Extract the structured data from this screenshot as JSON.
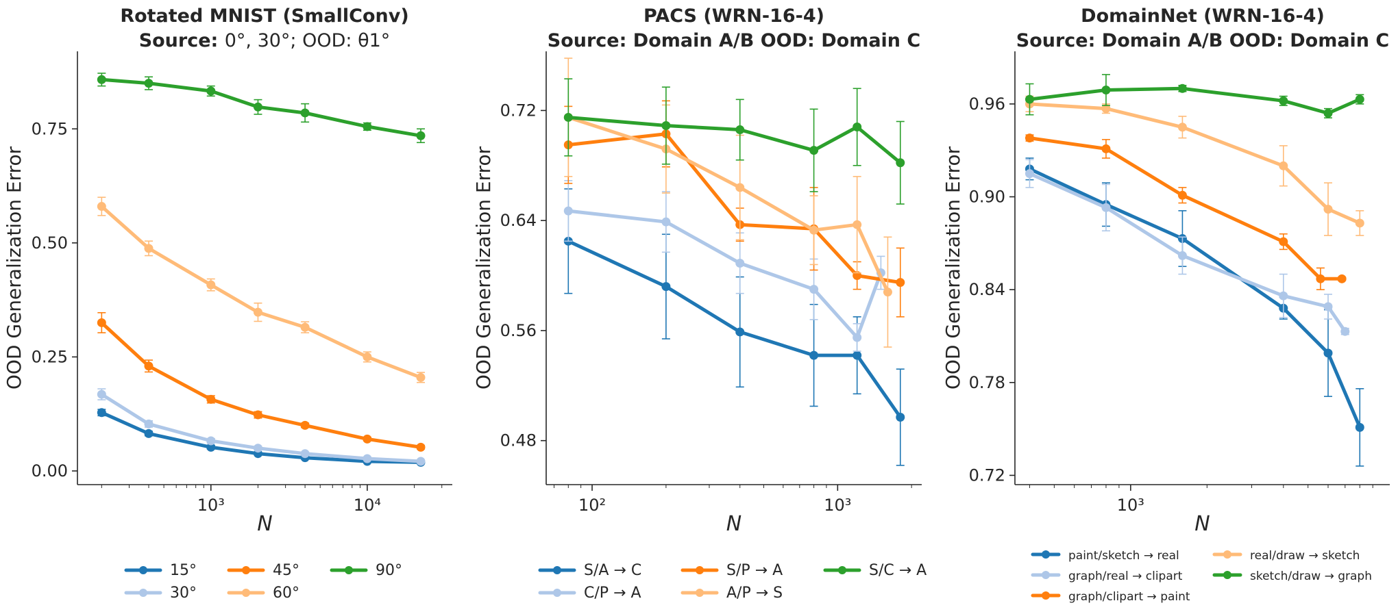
{
  "chart_data": [
    {
      "type": "line",
      "title": "Rotated MNIST (SmallConv)",
      "subtitle": "Source: 0°, 30°; OOD: θ1°",
      "subtitle_prefix": "Source: ",
      "subtitle_math": "0°, 30°; OOD: θ1°",
      "xlabel": "N",
      "ylabel": "OOD Generalization Error",
      "xscale": "log",
      "xlim": [
        140,
        35000
      ],
      "ylim": [
        -0.03,
        0.92
      ],
      "yticks": [
        0.0,
        0.25,
        0.5,
        0.75
      ],
      "ytick_labels": [
        "0.00",
        "0.25",
        "0.50",
        "0.75"
      ],
      "xticks": [
        1000,
        10000
      ],
      "xtick_labels": [
        "10³",
        "10⁴"
      ],
      "legend_cols": 3,
      "legend_position": "bottom-center",
      "x": [
        200,
        400,
        1000,
        2000,
        4000,
        10000,
        22000
      ],
      "series": [
        {
          "name": "15°",
          "color": "#1f77b4",
          "values": [
            0.128,
            0.082,
            0.052,
            0.038,
            0.029,
            0.021,
            0.019
          ],
          "err": [
            0.007,
            0.005,
            0.004,
            0.003,
            0.003,
            0.002,
            0.002
          ]
        },
        {
          "name": "30°",
          "color": "#aec7e8",
          "values": [
            0.168,
            0.103,
            0.066,
            0.05,
            0.038,
            0.027,
            0.021
          ],
          "err": [
            0.012,
            0.007,
            0.005,
            0.004,
            0.003,
            0.003,
            0.002
          ]
        },
        {
          "name": "45°",
          "color": "#ff7f0e",
          "values": [
            0.325,
            0.23,
            0.157,
            0.123,
            0.1,
            0.07,
            0.052
          ],
          "err": [
            0.022,
            0.013,
            0.008,
            0.007,
            0.005,
            0.004,
            0.004
          ]
        },
        {
          "name": "60°",
          "color": "#ffbb78",
          "values": [
            0.58,
            0.488,
            0.408,
            0.348,
            0.315,
            0.25,
            0.205
          ],
          "err": [
            0.02,
            0.016,
            0.013,
            0.02,
            0.012,
            0.011,
            0.011
          ]
        },
        {
          "name": "90°",
          "color": "#2ca02c",
          "values": [
            0.858,
            0.85,
            0.833,
            0.798,
            0.785,
            0.755,
            0.735
          ],
          "err": [
            0.014,
            0.014,
            0.011,
            0.016,
            0.02,
            0.008,
            0.015
          ]
        }
      ]
    },
    {
      "type": "line",
      "title": "PACS (WRN-16-4)",
      "subtitle": "Source: Domain A/B OOD: Domain C",
      "xlabel": "N",
      "ylabel": "OOD Generalization Error",
      "xscale": "log",
      "xlim": [
        65,
        2200
      ],
      "ylim": [
        0.448,
        0.763
      ],
      "yticks": [
        0.48,
        0.56,
        0.64,
        0.72
      ],
      "ytick_labels": [
        "0.48",
        "0.56",
        "0.64",
        "0.72"
      ],
      "xticks": [
        100,
        1000
      ],
      "xtick_labels": [
        "10²",
        "10³"
      ],
      "legend_cols": 3,
      "legend_position": "bottom-center",
      "x": [
        80,
        200,
        400,
        800,
        1200,
        1800
      ],
      "series": [
        {
          "name": "S/A → C",
          "color": "#1f77b4",
          "x": [
            80,
            200,
            400,
            800,
            1200,
            1800
          ],
          "values": [
            0.625,
            0.592,
            0.559,
            0.542,
            0.542,
            0.497
          ],
          "err": [
            0.038,
            0.038,
            0.04,
            0.037,
            0.028,
            0.035
          ]
        },
        {
          "name": "C/P → A",
          "color": "#aec7e8",
          "x": [
            80,
            200,
            400,
            800,
            1200,
            1500
          ],
          "values": [
            0.647,
            0.639,
            0.609,
            0.59,
            0.555,
            0.602
          ],
          "err": [
            0.022,
            0.022,
            0.022,
            0.022,
            0.01,
            0.012
          ]
        },
        {
          "name": "S/P → A",
          "color": "#ff7f0e",
          "x": [
            80,
            200,
            400,
            800,
            1200,
            1800
          ],
          "values": [
            0.695,
            0.703,
            0.637,
            0.634,
            0.6,
            0.595
          ],
          "err": [
            0.028,
            0.024,
            0.012,
            0.03,
            0.01,
            0.025
          ]
        },
        {
          "name": "A/P → S",
          "color": "#ffbb78",
          "x": [
            80,
            200,
            400,
            800,
            1200,
            1600
          ],
          "values": [
            0.715,
            0.692,
            0.664,
            0.633,
            0.637,
            0.588
          ],
          "err": [
            0.043,
            0.032,
            0.038,
            0.025,
            0.035,
            0.04
          ]
        },
        {
          "name": "S/C → A",
          "color": "#2ca02c",
          "x": [
            80,
            200,
            400,
            800,
            1200,
            1800
          ],
          "values": [
            0.715,
            0.709,
            0.706,
            0.691,
            0.708,
            0.682
          ],
          "err": [
            0.028,
            0.028,
            0.022,
            0.03,
            0.028,
            0.03
          ]
        }
      ]
    },
    {
      "type": "line",
      "title": "DomainNet (WRN-16-4)",
      "subtitle": "Source: Domain A/B OOD: Domain C",
      "xlabel": "N",
      "ylabel": "OOD Generalization Error",
      "xscale": "log",
      "xlim": [
        350,
        10500
      ],
      "ylim": [
        0.714,
        0.994
      ],
      "yticks": [
        0.72,
        0.78,
        0.84,
        0.9,
        0.96
      ],
      "ytick_labels": [
        "0.72",
        "0.78",
        "0.84",
        "0.90",
        "0.96"
      ],
      "xticks": [
        1000
      ],
      "xtick_labels": [
        "10³"
      ],
      "legend_cols": 2,
      "legend_position": "bottom-center",
      "series": [
        {
          "name": "paint/sketch → real",
          "color": "#1f77b4",
          "x": [
            400,
            800,
            1600,
            4000,
            6000,
            8000
          ],
          "values": [
            0.918,
            0.895,
            0.873,
            0.828,
            0.799,
            0.751
          ],
          "err": [
            0.007,
            0.014,
            0.018,
            0.007,
            0.028,
            0.025
          ]
        },
        {
          "name": "graph/real → clipart",
          "color": "#aec7e8",
          "x": [
            400,
            800,
            1600,
            4000,
            6000,
            7000
          ],
          "values": [
            0.915,
            0.893,
            0.862,
            0.836,
            0.829,
            0.813
          ],
          "err": [
            0.009,
            0.015,
            0.012,
            0.014,
            0.008,
            0.002
          ]
        },
        {
          "name": "graph/clipart → paint",
          "color": "#ff7f0e",
          "x": [
            400,
            800,
            1600,
            4000,
            5600,
            6800
          ],
          "values": [
            0.938,
            0.931,
            0.901,
            0.871,
            0.847,
            0.847
          ],
          "err": [
            0.002,
            0.006,
            0.005,
            0.005,
            0.007,
            0.001
          ]
        },
        {
          "name": "real/draw → sketch",
          "color": "#ffbb78",
          "x": [
            400,
            800,
            1600,
            4000,
            6000,
            8000
          ],
          "values": [
            0.96,
            0.957,
            0.945,
            0.92,
            0.892,
            0.883
          ],
          "err": [
            0.005,
            0.003,
            0.007,
            0.013,
            0.017,
            0.008
          ]
        },
        {
          "name": "sketch/draw → graph",
          "color": "#2ca02c",
          "x": [
            400,
            800,
            1600,
            4000,
            6000,
            8000
          ],
          "values": [
            0.963,
            0.969,
            0.97,
            0.962,
            0.954,
            0.963
          ],
          "err": [
            0.01,
            0.01,
            0.002,
            0.003,
            0.003,
            0.003
          ]
        }
      ]
    }
  ]
}
